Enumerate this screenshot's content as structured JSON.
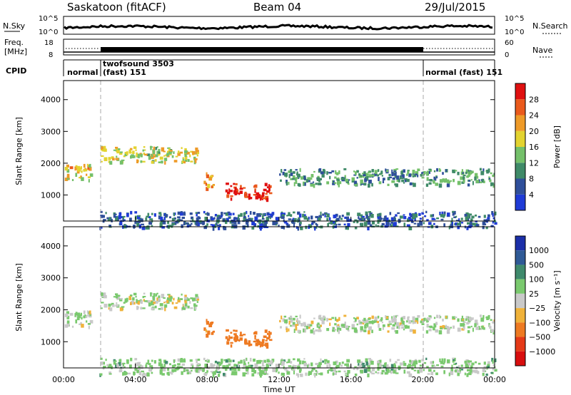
{
  "header": {
    "site_title": "Saskatoon (fitACF)",
    "beam": "Beam 04",
    "date": "29/Jul/2015"
  },
  "noise_panel": {
    "left_label": "N.Sky",
    "right_label": "N.Search",
    "ticks_left": [
      "10^5",
      "10^0"
    ],
    "ticks_right": [
      "10^5",
      "10^0"
    ]
  },
  "freq_panel": {
    "left_label_1": "Freq.",
    "left_label_2": "[MHz]",
    "right_label": "Nave",
    "ticks_left": [
      "18",
      "8"
    ],
    "ticks_right": [
      "60",
      "0"
    ]
  },
  "cpid_panel": {
    "label": "CPID",
    "segments": [
      {
        "line1": "normal",
        "line2": ""
      },
      {
        "line1": "twofsound  3503",
        "line2": "(fast)  151"
      },
      {
        "line1": "normal (fast)  151",
        "line2": ""
      }
    ]
  },
  "x_axis": {
    "title": "Time UT",
    "ticks": [
      "00:00",
      "04:00",
      "08:00",
      "12:00",
      "16:00",
      "20:00",
      "00:00"
    ]
  },
  "y_axis": {
    "title": "Slant Range [km]",
    "ticks": [
      "1000",
      "2000",
      "3000",
      "4000"
    ]
  },
  "power_colorbar": {
    "title": "Power [dB]",
    "ticks": [
      "4",
      "8",
      "12",
      "16",
      "20",
      "24",
      "28"
    ],
    "colors": [
      "#1f3bd6",
      "#2f4f9a",
      "#3f8a68",
      "#74c06a",
      "#e3d330",
      "#ee9a28",
      "#ea5a1c",
      "#e01010"
    ]
  },
  "velocity_colorbar": {
    "title": "Velocity [m s⁻¹]",
    "ticks": [
      "1000",
      "500",
      "100",
      "25",
      "−25",
      "−100",
      "−500",
      "−1000"
    ],
    "colors": [
      "#1b2fa8",
      "#2f5a96",
      "#3f8a6c",
      "#7ac96e",
      "#c9c9c9",
      "#f0b23a",
      "#ee7a22",
      "#e53a18",
      "#d80e0e"
    ]
  },
  "chart_data": {
    "type": "heatmap",
    "panels": [
      "Power",
      "Velocity"
    ],
    "x_range_hours": [
      0,
      24
    ],
    "y_range_km": [
      180,
      4600
    ],
    "mode_change_hours": [
      1.75,
      20.0
    ],
    "power_scale_db": [
      0,
      30
    ],
    "velocity_scale_ms": [
      -1000,
      1000
    ],
    "echo_bands": [
      {
        "t_start": 0,
        "t_end": 1.5,
        "range_km": 1750,
        "power_db": 18,
        "velocity_ms": 20
      },
      {
        "t_start": 2,
        "t_end": 7.5,
        "range_km": 2300,
        "power_db": 16,
        "velocity_ms": 15
      },
      {
        "t_start": 7.8,
        "t_end": 8.3,
        "range_km": 1500,
        "power_db": 20,
        "velocity_ms": -150
      },
      {
        "t_start": 9,
        "t_end": 11.5,
        "range_km": 1150,
        "power_db": 27,
        "velocity_ms": -250
      },
      {
        "t_start": 12,
        "t_end": 24,
        "range_km": 1600,
        "power_db": 10,
        "velocity_ms": 15
      },
      {
        "t_start": 2,
        "t_end": 24,
        "range_km": 250,
        "power_db": 6,
        "velocity_ms": 50
      }
    ]
  }
}
